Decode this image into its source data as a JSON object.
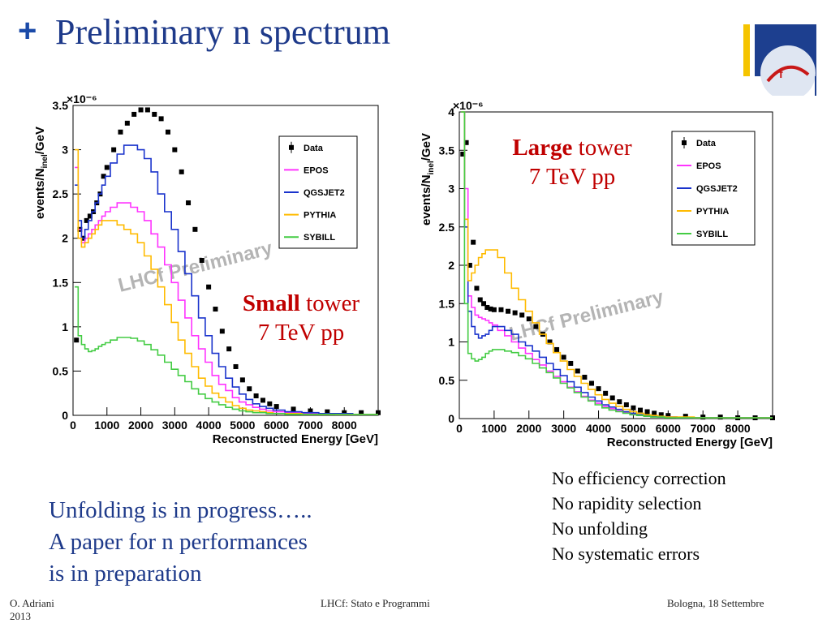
{
  "slide": {
    "title_marker": "+",
    "title": "Preliminary n spectrum",
    "labels": {
      "large_bold": "Large",
      "large_rest": " tower",
      "large_energy": "7 TeV pp",
      "small_bold": "Small",
      "small_rest": " tower",
      "small_energy": "7 TeV pp"
    },
    "notes": [
      "No efficiency correction",
      "No rapidity selection",
      "No unfolding",
      "No systematic errors"
    ],
    "unfolding": [
      "Unfolding is in progress…..",
      "A paper for n performances",
      "is in preparation"
    ],
    "footer": {
      "left": "O. Adriani\n2013",
      "middle": "LHCf: Stato e Programmi",
      "right": "Bologna, 18 Settembre"
    }
  },
  "colors": {
    "Data": "#000000",
    "EPOS": "#ff33ff",
    "QGSJET2": "#1a33cc",
    "PYTHIA": "#ffbb00",
    "SYBILL": "#44cc44",
    "watermark": "#b4b4b4",
    "title": "#1e3a8a",
    "label": "#c00000"
  },
  "chart_data": [
    {
      "id": "small",
      "type": "line",
      "watermark": "LHCf Preliminary",
      "exponent": "×10⁻⁶",
      "xlabel": "Reconstructed Energy [GeV]",
      "ylabel": "events/N",
      "ylabel_sub": "inel",
      "ylabel_end": "/GeV",
      "xlim": [
        0,
        9000
      ],
      "ylim": [
        0,
        3.5
      ],
      "xticks": [
        0,
        1000,
        2000,
        3000,
        4000,
        5000,
        6000,
        7000,
        8000
      ],
      "yticks": [
        0,
        0.5,
        1,
        1.5,
        2,
        2.5,
        3,
        3.5
      ],
      "ytick_labels": [
        "0",
        "0.5",
        "1",
        "1.5",
        "2",
        "2.5",
        "3",
        "3.5"
      ],
      "legend": [
        "Data",
        "EPOS",
        "QGSJET2",
        "PYTHIA",
        "SYBILL"
      ],
      "x": [
        100,
        200,
        300,
        400,
        500,
        600,
        700,
        800,
        900,
        1000,
        1200,
        1400,
        1600,
        1800,
        2000,
        2200,
        2400,
        2600,
        2800,
        3000,
        3200,
        3400,
        3600,
        3800,
        4000,
        4200,
        4400,
        4600,
        4800,
        5000,
        5200,
        5400,
        5600,
        5800,
        6000,
        6500,
        7000,
        7500,
        8000,
        8500,
        9000
      ],
      "series": [
        {
          "name": "Data",
          "values": [
            0.85,
            2.1,
            2.0,
            2.2,
            2.25,
            2.3,
            2.4,
            2.5,
            2.7,
            2.8,
            3.0,
            3.2,
            3.3,
            3.4,
            3.45,
            3.45,
            3.4,
            3.35,
            3.2,
            3.0,
            2.75,
            2.4,
            2.1,
            1.75,
            1.45,
            1.2,
            0.95,
            0.75,
            0.55,
            0.4,
            0.3,
            0.22,
            0.17,
            0.13,
            0.1,
            0.07,
            0.05,
            0.04,
            0.03,
            0.03,
            0.03
          ]
        },
        {
          "name": "EPOS",
          "values": [
            2.8,
            2.1,
            1.95,
            2.0,
            2.05,
            2.1,
            2.15,
            2.2,
            2.25,
            2.3,
            2.35,
            2.4,
            2.4,
            2.35,
            2.3,
            2.2,
            2.05,
            1.9,
            1.7,
            1.5,
            1.3,
            1.1,
            0.9,
            0.75,
            0.6,
            0.45,
            0.35,
            0.28,
            0.2,
            0.15,
            0.12,
            0.09,
            0.07,
            0.05,
            0.04,
            0.03,
            0.02,
            0.02,
            0.01,
            0.01,
            0.01
          ]
        },
        {
          "name": "QGSJET2",
          "values": [
            2.6,
            2.2,
            2.0,
            2.1,
            2.2,
            2.3,
            2.4,
            2.5,
            2.6,
            2.7,
            2.85,
            2.95,
            3.05,
            3.05,
            3.0,
            2.9,
            2.75,
            2.5,
            2.3,
            2.1,
            1.85,
            1.6,
            1.35,
            1.1,
            0.9,
            0.7,
            0.55,
            0.42,
            0.32,
            0.24,
            0.18,
            0.13,
            0.1,
            0.08,
            0.06,
            0.04,
            0.03,
            0.02,
            0.02,
            0.01,
            0.01
          ]
        },
        {
          "name": "PYTHIA",
          "values": [
            3.0,
            2.0,
            1.9,
            1.95,
            2.0,
            2.05,
            2.1,
            2.15,
            2.2,
            2.2,
            2.2,
            2.15,
            2.1,
            2.05,
            1.95,
            1.8,
            1.65,
            1.45,
            1.25,
            1.05,
            0.85,
            0.7,
            0.55,
            0.42,
            0.33,
            0.25,
            0.2,
            0.15,
            0.11,
            0.08,
            0.06,
            0.05,
            0.04,
            0.03,
            0.02,
            0.02,
            0.01,
            0.01,
            0.01,
            0.01,
            0.01
          ]
        },
        {
          "name": "SYBILL",
          "values": [
            1.45,
            0.9,
            0.8,
            0.75,
            0.72,
            0.73,
            0.75,
            0.78,
            0.8,
            0.82,
            0.85,
            0.88,
            0.88,
            0.87,
            0.84,
            0.8,
            0.74,
            0.68,
            0.6,
            0.52,
            0.45,
            0.38,
            0.3,
            0.24,
            0.19,
            0.15,
            0.12,
            0.09,
            0.07,
            0.05,
            0.04,
            0.03,
            0.03,
            0.02,
            0.02,
            0.01,
            0.01,
            0.01,
            0.01,
            0.01,
            0.01
          ]
        }
      ]
    },
    {
      "id": "large",
      "type": "line",
      "watermark": "LHCf Preliminary",
      "exponent": "×10⁻⁶",
      "xlabel": "Reconstructed Energy [GeV]",
      "ylabel": "events/N",
      "ylabel_sub": "inel",
      "ylabel_end": "/GeV",
      "xlim": [
        0,
        9000
      ],
      "ylim": [
        0,
        4
      ],
      "xticks": [
        0,
        1000,
        2000,
        3000,
        4000,
        5000,
        6000,
        7000,
        8000
      ],
      "yticks": [
        0,
        0.5,
        1,
        1.5,
        2,
        2.5,
        3,
        3.5,
        4
      ],
      "ytick_labels": [
        "0",
        "0.5",
        "1",
        "1.5",
        "2",
        "2.5",
        "3",
        "3.5",
        "4"
      ],
      "legend": [
        "Data",
        "EPOS",
        "QGSJET2",
        "PYTHIA",
        "SYBILL"
      ],
      "x": [
        100,
        200,
        300,
        400,
        500,
        600,
        700,
        800,
        900,
        1000,
        1200,
        1400,
        1600,
        1800,
        2000,
        2200,
        2400,
        2600,
        2800,
        3000,
        3200,
        3400,
        3600,
        3800,
        4000,
        4200,
        4400,
        4600,
        4800,
        5000,
        5200,
        5400,
        5600,
        5800,
        6000,
        6500,
        7000,
        7500,
        8000,
        8500,
        9000
      ],
      "series": [
        {
          "name": "Data",
          "values": [
            3.45,
            3.6,
            2.0,
            2.3,
            1.7,
            1.55,
            1.5,
            1.45,
            1.43,
            1.42,
            1.42,
            1.4,
            1.38,
            1.35,
            1.3,
            1.2,
            1.1,
            1.0,
            0.9,
            0.8,
            0.72,
            0.62,
            0.54,
            0.46,
            0.39,
            0.33,
            0.27,
            0.22,
            0.18,
            0.14,
            0.11,
            0.09,
            0.07,
            0.05,
            0.04,
            0.03,
            0.02,
            0.02,
            0.01,
            0.01,
            0.01
          ]
        },
        {
          "name": "EPOS",
          "values": [
            4.0,
            3.0,
            1.6,
            1.45,
            1.35,
            1.32,
            1.3,
            1.28,
            1.25,
            1.22,
            1.15,
            1.08,
            1.0,
            0.92,
            0.85,
            0.77,
            0.7,
            0.62,
            0.55,
            0.48,
            0.41,
            0.35,
            0.29,
            0.24,
            0.2,
            0.16,
            0.13,
            0.1,
            0.08,
            0.06,
            0.05,
            0.04,
            0.03,
            0.02,
            0.02,
            0.01,
            0.01,
            0.01,
            0.01,
            0.01,
            0.01
          ]
        },
        {
          "name": "QGSJET2",
          "values": [
            4.0,
            2.5,
            1.4,
            1.2,
            1.1,
            1.05,
            1.08,
            1.1,
            1.15,
            1.2,
            1.2,
            1.15,
            1.1,
            1.0,
            0.95,
            0.88,
            0.8,
            0.72,
            0.64,
            0.56,
            0.48,
            0.41,
            0.34,
            0.28,
            0.23,
            0.18,
            0.15,
            0.12,
            0.09,
            0.07,
            0.05,
            0.04,
            0.03,
            0.02,
            0.02,
            0.01,
            0.01,
            0.01,
            0.01,
            0.01,
            0.01
          ]
        },
        {
          "name": "PYTHIA",
          "values": [
            4.0,
            2.6,
            1.8,
            1.9,
            2.0,
            2.1,
            2.15,
            2.2,
            2.2,
            2.2,
            2.1,
            1.9,
            1.7,
            1.55,
            1.4,
            1.25,
            1.1,
            0.98,
            0.86,
            0.75,
            0.64,
            0.55,
            0.46,
            0.38,
            0.31,
            0.25,
            0.2,
            0.16,
            0.12,
            0.09,
            0.07,
            0.05,
            0.04,
            0.03,
            0.02,
            0.02,
            0.01,
            0.01,
            0.01,
            0.01,
            0.01
          ]
        },
        {
          "name": "SYBILL",
          "values": [
            4.0,
            1.5,
            0.85,
            0.78,
            0.75,
            0.77,
            0.8,
            0.85,
            0.88,
            0.9,
            0.9,
            0.88,
            0.86,
            0.82,
            0.78,
            0.72,
            0.66,
            0.6,
            0.53,
            0.46,
            0.4,
            0.34,
            0.28,
            0.23,
            0.18,
            0.14,
            0.11,
            0.09,
            0.07,
            0.05,
            0.04,
            0.03,
            0.02,
            0.02,
            0.01,
            0.01,
            0.01,
            0.01,
            0.01,
            0.01,
            0.01
          ]
        }
      ]
    }
  ]
}
